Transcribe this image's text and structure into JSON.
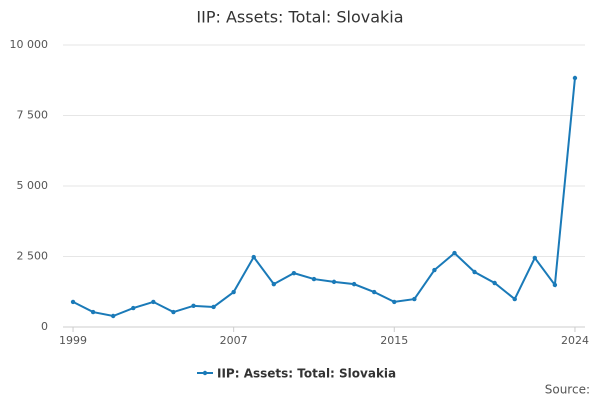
{
  "chart_data": {
    "type": "line",
    "title": "IIP: Assets: Total: Slovakia",
    "x": [
      1999,
      2000,
      2001,
      2002,
      2003,
      2004,
      2005,
      2006,
      2007,
      2008,
      2009,
      2010,
      2011,
      2012,
      2013,
      2014,
      2015,
      2016,
      2017,
      2018,
      2019,
      2020,
      2021,
      2022,
      2023,
      2024
    ],
    "series": [
      {
        "name": "IIP: Assets: Total: Slovakia",
        "color": "#1a7ab8",
        "values": [
          890,
          530,
          390,
          670,
          890,
          530,
          750,
          710,
          1240,
          2480,
          1520,
          1910,
          1700,
          1600,
          1520,
          1240,
          890,
          990,
          2020,
          2620,
          1950,
          1560,
          990,
          2450,
          1490,
          8830
        ]
      }
    ],
    "xlim": [
      1998.5,
      2024.5
    ],
    "xticks": [
      1999,
      2007,
      2015,
      2024
    ],
    "ylim": [
      0,
      10000
    ],
    "yticks": [
      0,
      {
        "value": 2500,
        "label": "2 500"
      },
      {
        "value": 5000,
        "label": "5 000"
      },
      {
        "value": 7500,
        "label": "7 500"
      },
      {
        "value": 10000,
        "label": "10 000"
      }
    ],
    "grid": true,
    "source": "Source:"
  }
}
